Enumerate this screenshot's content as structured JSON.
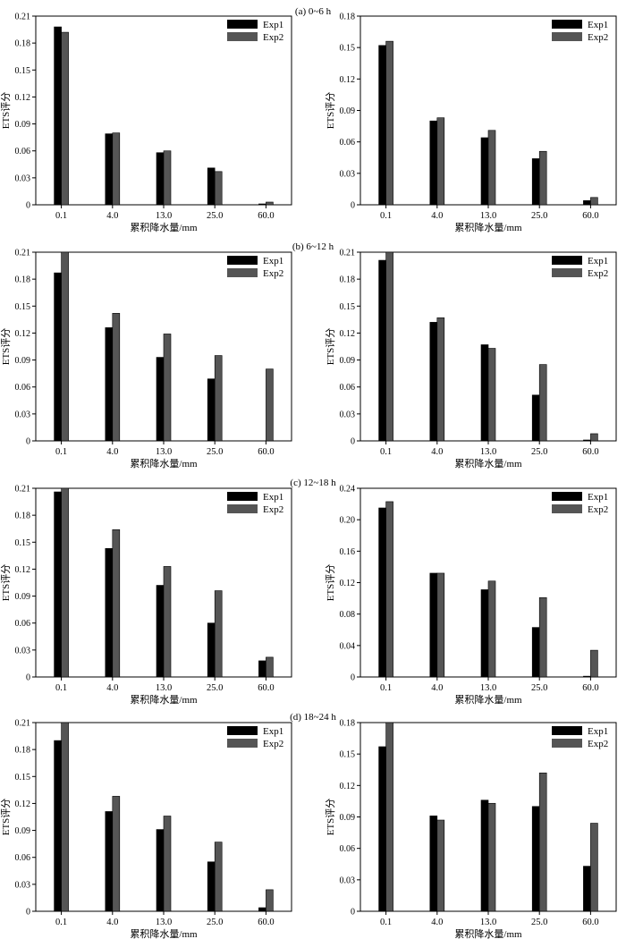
{
  "figure": {
    "row_titles": [
      "(a) 0~6 h",
      "(b) 6~12 h",
      "(c) 12~18 h",
      "(d) 18~24 h"
    ],
    "colors": {
      "Exp1": "#000000",
      "Exp2": "#555555"
    }
  },
  "chart_data": [
    {
      "type": "bar",
      "row_title": "(a) 0~6 h",
      "categories": [
        "0.1",
        "4.0",
        "13.0",
        "25.0",
        "60.0"
      ],
      "series": [
        {
          "name": "Exp1",
          "values": [
            0.198,
            0.079,
            0.058,
            0.041,
            0.001
          ]
        },
        {
          "name": "Exp2",
          "values": [
            0.192,
            0.08,
            0.06,
            0.037,
            0.003
          ]
        }
      ],
      "xlabel": "累积降水量/mm",
      "ylabel": "ETS评分",
      "ylim": [
        0,
        0.21
      ],
      "yticks": [
        "0",
        "0.03",
        "0.06",
        "0.09",
        "0.12",
        "0.15",
        "0.18",
        "0.21"
      ],
      "legend": "top-right"
    },
    {
      "type": "bar",
      "row_title": "(a) 0~6 h",
      "categories": [
        "0.1",
        "4.0",
        "13.0",
        "25.0",
        "60.0"
      ],
      "series": [
        {
          "name": "Exp1",
          "values": [
            0.152,
            0.08,
            0.064,
            0.044,
            0.004
          ]
        },
        {
          "name": "Exp2",
          "values": [
            0.156,
            0.083,
            0.071,
            0.051,
            0.007
          ]
        }
      ],
      "xlabel": "累积降水量/mm",
      "ylabel": "ETS评分",
      "ylim": [
        0,
        0.18
      ],
      "yticks": [
        "0",
        "0.03",
        "0.06",
        "0.09",
        "0.12",
        "0.15",
        "0.18"
      ],
      "legend": "top-right"
    },
    {
      "type": "bar",
      "row_title": "(b) 6~12 h",
      "categories": [
        "0.1",
        "4.0",
        "13.0",
        "25.0",
        "60.0"
      ],
      "series": [
        {
          "name": "Exp1",
          "values": [
            0.187,
            0.126,
            0.093,
            0.069,
            0.0
          ]
        },
        {
          "name": "Exp2",
          "values": [
            0.21,
            0.142,
            0.119,
            0.095,
            0.08
          ]
        }
      ],
      "xlabel": "累积降水量/mm",
      "ylabel": "ETS评分",
      "ylim": [
        0,
        0.21
      ],
      "yticks": [
        "0",
        "0.03",
        "0.06",
        "0.09",
        "0.12",
        "0.15",
        "0.18",
        "0.21"
      ],
      "legend": "top-right"
    },
    {
      "type": "bar",
      "row_title": "(b) 6~12 h",
      "categories": [
        "0.1",
        "4.0",
        "13.0",
        "25.0",
        "60.0"
      ],
      "series": [
        {
          "name": "Exp1",
          "values": [
            0.201,
            0.132,
            0.107,
            0.051,
            0.001
          ]
        },
        {
          "name": "Exp2",
          "values": [
            0.21,
            0.137,
            0.103,
            0.085,
            0.008
          ]
        }
      ],
      "xlabel": "累积降水量/mm",
      "ylabel": "ETS评分",
      "ylim": [
        0,
        0.21
      ],
      "yticks": [
        "0",
        "0.03",
        "0.06",
        "0.09",
        "0.12",
        "0.15",
        "0.18",
        "0.21"
      ],
      "legend": "top-right"
    },
    {
      "type": "bar",
      "row_title": "(c) 12~18 h",
      "categories": [
        "0.1",
        "4.0",
        "13.0",
        "25.0",
        "60.0"
      ],
      "series": [
        {
          "name": "Exp1",
          "values": [
            0.206,
            0.143,
            0.102,
            0.06,
            0.018
          ]
        },
        {
          "name": "Exp2",
          "values": [
            0.21,
            0.164,
            0.123,
            0.096,
            0.022
          ]
        }
      ],
      "xlabel": "累积降水量/mm",
      "ylabel": "ETS评分",
      "ylim": [
        0,
        0.21
      ],
      "yticks": [
        "0",
        "0.03",
        "0.06",
        "0.09",
        "0.12",
        "0.15",
        "0.18",
        "0.21"
      ],
      "legend": "top-right"
    },
    {
      "type": "bar",
      "row_title": "(c) 12~18 h",
      "categories": [
        "0.1",
        "4.0",
        "13.0",
        "25.0",
        "60.0"
      ],
      "series": [
        {
          "name": "Exp1",
          "values": [
            0.215,
            0.132,
            0.111,
            0.063,
            0.001
          ]
        },
        {
          "name": "Exp2",
          "values": [
            0.223,
            0.132,
            0.122,
            0.101,
            0.034
          ]
        }
      ],
      "xlabel": "累积降水量/mm",
      "ylabel": "ETS评分",
      "ylim": [
        0,
        0.24
      ],
      "yticks": [
        "0",
        "0.04",
        "0.08",
        "0.12",
        "0.16",
        "0.20",
        "0.24"
      ],
      "legend": "top-right"
    },
    {
      "type": "bar",
      "row_title": "(d) 18~24 h",
      "categories": [
        "0.1",
        "4.0",
        "13.0",
        "25.0",
        "60.0"
      ],
      "series": [
        {
          "name": "Exp1",
          "values": [
            0.19,
            0.111,
            0.091,
            0.055,
            0.004
          ]
        },
        {
          "name": "Exp2",
          "values": [
            0.21,
            0.128,
            0.106,
            0.077,
            0.024
          ]
        }
      ],
      "xlabel": "累积降水量/mm",
      "ylabel": "ETS评分",
      "ylim": [
        0,
        0.21
      ],
      "yticks": [
        "0",
        "0.03",
        "0.06",
        "0.09",
        "0.12",
        "0.15",
        "0.18",
        "0.21"
      ],
      "legend": "top-right"
    },
    {
      "type": "bar",
      "row_title": "(d) 18~24 h",
      "categories": [
        "0.1",
        "4.0",
        "13.0",
        "25.0",
        "60.0"
      ],
      "series": [
        {
          "name": "Exp1",
          "values": [
            0.157,
            0.091,
            0.106,
            0.1,
            0.043
          ]
        },
        {
          "name": "Exp2",
          "values": [
            0.18,
            0.087,
            0.103,
            0.132,
            0.084
          ]
        }
      ],
      "xlabel": "累积降水量/mm",
      "ylabel": "ETS评分",
      "ylim": [
        0,
        0.18
      ],
      "yticks": [
        "0",
        "0.03",
        "0.06",
        "0.09",
        "0.12",
        "0.15",
        "0.18"
      ],
      "legend": "top-right"
    }
  ]
}
